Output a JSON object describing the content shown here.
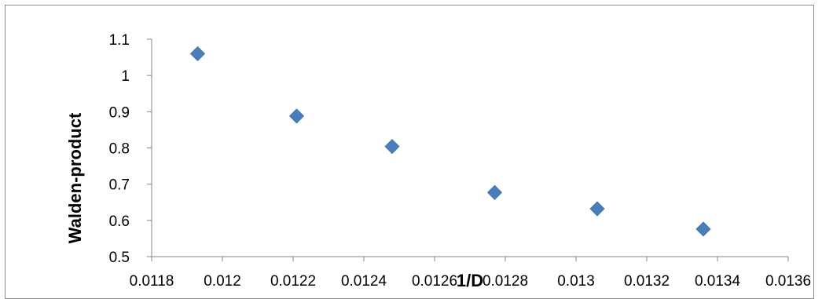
{
  "chart_data": {
    "type": "scatter",
    "title": "",
    "xlabel": "1/D",
    "ylabel": "Walden-product",
    "xlim": [
      0.0118,
      0.0136
    ],
    "ylim": [
      0.5,
      1.1
    ],
    "x_ticks": [
      "0.0118",
      "0.012",
      "0.0122",
      "0.0124",
      "0.0126",
      "0.0128",
      "0.013",
      "0.0132",
      "0.0134",
      "0.0136"
    ],
    "y_ticks": [
      "0.5",
      "0.6",
      "0.7",
      "0.8",
      "0.9",
      "1",
      "1.1"
    ],
    "grid": false,
    "legend": "none",
    "marker": "diamond",
    "marker_color": "#4a7ebb",
    "series": [
      {
        "x": [
          0.01193,
          0.01221,
          0.01248,
          0.01277,
          0.01306,
          0.01336
        ],
        "y": [
          1.06,
          0.888,
          0.804,
          0.677,
          0.632,
          0.576
        ]
      }
    ]
  }
}
